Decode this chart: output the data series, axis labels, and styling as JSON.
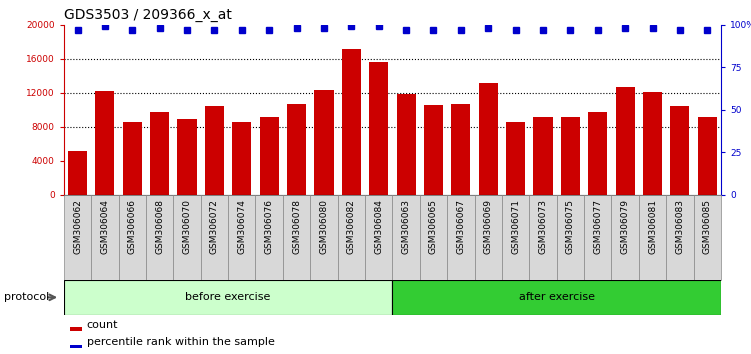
{
  "title": "GDS3503 / 209366_x_at",
  "categories": [
    "GSM306062",
    "GSM306064",
    "GSM306066",
    "GSM306068",
    "GSM306070",
    "GSM306072",
    "GSM306074",
    "GSM306076",
    "GSM306078",
    "GSM306080",
    "GSM306082",
    "GSM306084",
    "GSM306063",
    "GSM306065",
    "GSM306067",
    "GSM306069",
    "GSM306071",
    "GSM306073",
    "GSM306075",
    "GSM306077",
    "GSM306079",
    "GSM306081",
    "GSM306083",
    "GSM306085"
  ],
  "bar_values": [
    5200,
    12200,
    8600,
    9700,
    8900,
    10400,
    8600,
    9100,
    10700,
    12300,
    17100,
    15600,
    11900,
    10600,
    10700,
    13100,
    8500,
    9100,
    9100,
    9700,
    12700,
    12100,
    10400,
    9200
  ],
  "percentile_values": [
    97,
    99,
    97,
    98,
    97,
    97,
    97,
    97,
    98,
    98,
    99,
    99,
    97,
    97,
    97,
    98,
    97,
    97,
    97,
    97,
    98,
    98,
    97,
    97
  ],
  "bar_color": "#cc0000",
  "percentile_color": "#0000cc",
  "ylim_left": [
    0,
    20000
  ],
  "ylim_right": [
    0,
    100
  ],
  "yticks_left": [
    0,
    4000,
    8000,
    12000,
    16000,
    20000
  ],
  "yticks_right": [
    0,
    25,
    50,
    75,
    100
  ],
  "ytick_labels_right": [
    "0",
    "25",
    "50",
    "75",
    "100%"
  ],
  "before_exercise_count": 12,
  "after_exercise_count": 12,
  "protocol_label": "protocol",
  "before_label": "before exercise",
  "after_label": "after exercise",
  "legend_count_label": "count",
  "legend_percentile_label": "percentile rank within the sample",
  "before_color": "#ccffcc",
  "after_color": "#33cc33",
  "bar_width": 0.7,
  "title_fontsize": 10,
  "tick_fontsize": 6.5,
  "label_fontsize": 8,
  "cell_bg_color": "#d8d8d8",
  "cell_border_color": "#888888"
}
